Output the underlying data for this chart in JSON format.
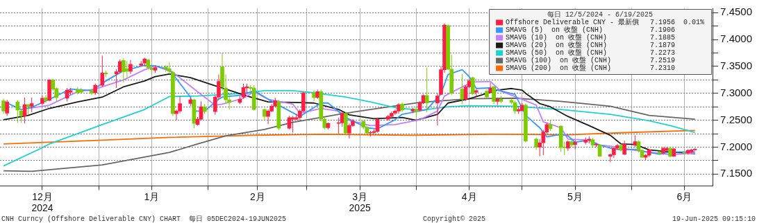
{
  "chart_data": {
    "type": "candlestick",
    "legend_title": "每日 12/5/2024 - 6/19/2025",
    "legend": "top right",
    "grid": true,
    "x": [
      "2024-12-05",
      "2024-12-06",
      "2024-12-09",
      "2024-12-10",
      "2024-12-11",
      "2024-12-12",
      "2024-12-13",
      "2024-12-16",
      "2024-12-17",
      "2024-12-18",
      "2024-12-19",
      "2024-12-20",
      "2024-12-23",
      "2024-12-24",
      "2024-12-26",
      "2024-12-27",
      "2024-12-30",
      "2024-12-31",
      "2025-01-02",
      "2025-01-03",
      "2025-01-06",
      "2025-01-07",
      "2025-01-08",
      "2025-01-09",
      "2025-01-10",
      "2025-01-13",
      "2025-01-14",
      "2025-01-15",
      "2025-01-16",
      "2025-01-17",
      "2025-01-20",
      "2025-01-21",
      "2025-01-22",
      "2025-01-23",
      "2025-01-24",
      "2025-01-27",
      "2025-01-28",
      "2025-01-29",
      "2025-01-30",
      "2025-01-31",
      "2025-02-03",
      "2025-02-04",
      "2025-02-05",
      "2025-02-06",
      "2025-02-07",
      "2025-02-10",
      "2025-02-11",
      "2025-02-12",
      "2025-02-13",
      "2025-02-14",
      "2025-02-17",
      "2025-02-18",
      "2025-02-19",
      "2025-02-20",
      "2025-02-21",
      "2025-02-24",
      "2025-02-25",
      "2025-02-26",
      "2025-02-27",
      "2025-02-28",
      "2025-03-03",
      "2025-03-04",
      "2025-03-05",
      "2025-03-06",
      "2025-03-07",
      "2025-03-10",
      "2025-03-11",
      "2025-03-12",
      "2025-03-13",
      "2025-03-14",
      "2025-03-17",
      "2025-03-18",
      "2025-03-19",
      "2025-03-20",
      "2025-03-21",
      "2025-03-24",
      "2025-03-25",
      "2025-03-26",
      "2025-03-27",
      "2025-03-28",
      "2025-03-31",
      "2025-04-01",
      "2025-04-02",
      "2025-04-03",
      "2025-04-04",
      "2025-04-07",
      "2025-04-08",
      "2025-04-09",
      "2025-04-10",
      "2025-04-11",
      "2025-04-14",
      "2025-04-15",
      "2025-04-16",
      "2025-04-17",
      "2025-04-18",
      "2025-04-21",
      "2025-04-22",
      "2025-04-23",
      "2025-04-24",
      "2025-04-25",
      "2025-04-28",
      "2025-04-29",
      "2025-04-30",
      "2025-05-01",
      "2025-05-02",
      "2025-05-05",
      "2025-05-06",
      "2025-05-07",
      "2025-05-08",
      "2025-05-09",
      "2025-05-12",
      "2025-05-13",
      "2025-05-14",
      "2025-05-15",
      "2025-05-16",
      "2025-05-19",
      "2025-05-20",
      "2025-05-21",
      "2025-05-22",
      "2025-05-23",
      "2025-05-26",
      "2025-05-27",
      "2025-05-28",
      "2025-05-29",
      "2025-05-30",
      "2025-06-02",
      "2025-06-03",
      "2025-06-04",
      "2025-06-05",
      "2025-06-06",
      "2025-06-09",
      "2025-06-10",
      "2025-06-11",
      "2025-06-12",
      "2025-06-13",
      "2025-06-16",
      "2025-06-17",
      "2025-06-18",
      "2025-06-19"
    ],
    "xlim": [
      "2024-12-04",
      "2025-06-24"
    ],
    "xticks": [
      {
        "value": "2024-12-16",
        "label": "12月\n2024"
      },
      {
        "value": "2025-01-01",
        "label": null
      },
      {
        "value": "2025-01-16",
        "label": "1月"
      },
      {
        "value": "2025-02-01",
        "label": null
      },
      {
        "value": "2025-02-15",
        "label": "2月"
      },
      {
        "value": "2025-03-01",
        "label": null
      },
      {
        "value": "2025-03-16",
        "label": "3月\n2025"
      },
      {
        "value": "2025-04-01",
        "label": null
      },
      {
        "value": "2025-04-16",
        "label": "4月"
      },
      {
        "value": "2025-05-01",
        "label": null
      },
      {
        "value": "2025-05-16",
        "label": "5月"
      },
      {
        "value": "2025-06-01",
        "label": null
      },
      {
        "value": "2025-06-16",
        "label": "6月"
      }
    ],
    "ylim": [
      7.128,
      7.458
    ],
    "yticks": [
      {
        "value": 7.15,
        "label": "7.1500"
      },
      {
        "value": 7.175,
        "label": null
      },
      {
        "value": 7.2,
        "label": "7.2000"
      },
      {
        "value": 7.225,
        "label": null
      },
      {
        "value": 7.25,
        "label": "7.2500"
      },
      {
        "value": 7.275,
        "label": null
      },
      {
        "value": 7.3,
        "label": "7.3000"
      },
      {
        "value": 7.325,
        "label": null
      },
      {
        "value": 7.35,
        "label": "7.3500"
      },
      {
        "value": 7.375,
        "label": null
      },
      {
        "value": 7.4,
        "label": "7.4000"
      },
      {
        "value": 7.425,
        "label": null
      },
      {
        "value": 7.45,
        "label": "7.4500"
      }
    ],
    "series": [
      {
        "name": "Offshore Deliverable CNY - 最新價",
        "color": "#ff1e46",
        "ohlc": [
          [
            7.286,
            7.29,
            7.262,
            7.267
          ],
          [
            7.263,
            7.288,
            7.258,
            7.284
          ],
          [
            7.284,
            7.287,
            7.245,
            7.269
          ],
          [
            7.267,
            7.27,
            7.245,
            7.258
          ],
          [
            7.258,
            7.292,
            7.244,
            7.279
          ],
          [
            7.279,
            7.28,
            7.26,
            7.275
          ],
          [
            7.276,
            7.292,
            7.265,
            7.281
          ],
          [
            7.281,
            7.296,
            7.278,
            7.291
          ],
          [
            7.292,
            7.297,
            7.282,
            7.287
          ],
          [
            7.287,
            7.326,
            7.285,
            7.325
          ],
          [
            7.325,
            7.327,
            7.305,
            7.308
          ],
          [
            7.309,
            7.311,
            7.285,
            7.292
          ],
          [
            7.291,
            7.31,
            7.285,
            7.306
          ],
          [
            7.302,
            7.31,
            7.297,
            7.305
          ],
          [
            7.307,
            7.312,
            7.298,
            7.301
          ],
          [
            7.306,
            7.31,
            7.299,
            7.302
          ],
          [
            7.305,
            7.308,
            7.297,
            7.3
          ],
          [
            7.301,
            7.318,
            7.297,
            7.315
          ],
          [
            7.315,
            7.37,
            7.312,
            7.338
          ],
          [
            7.338,
            7.342,
            7.33,
            7.336
          ],
          [
            7.336,
            7.345,
            7.31,
            7.34
          ],
          [
            7.34,
            7.363,
            7.338,
            7.359
          ],
          [
            7.361,
            7.365,
            7.32,
            7.34
          ],
          [
            7.346,
            7.36,
            7.33,
            7.341
          ],
          [
            7.341,
            7.362,
            7.336,
            7.354
          ],
          [
            7.352,
            7.36,
            7.35,
            7.355
          ],
          [
            7.356,
            7.366,
            7.35,
            7.364
          ],
          [
            7.362,
            7.364,
            7.344,
            7.348
          ],
          [
            7.347,
            7.352,
            7.336,
            7.344
          ],
          [
            7.343,
            7.352,
            7.338,
            7.348
          ],
          [
            7.349,
            7.352,
            7.34,
            7.346
          ],
          [
            7.346,
            7.358,
            7.336,
            7.341
          ],
          [
            7.339,
            7.342,
            7.258,
            7.262
          ],
          [
            7.262,
            7.27,
            7.25,
            7.267
          ],
          [
            7.267,
            7.295,
            7.263,
            7.281
          ],
          [
            7.281,
            7.292,
            7.276,
            7.288
          ],
          [
            7.288,
            7.29,
            7.235,
            7.244
          ],
          [
            7.242,
            7.256,
            7.24,
            7.252
          ],
          [
            7.252,
            7.285,
            7.25,
            7.275
          ],
          [
            7.275,
            7.28,
            7.262,
            7.266
          ],
          [
            7.266,
            7.296,
            7.26,
            7.293
          ],
          [
            7.293,
            7.335,
            7.29,
            7.322
          ],
          [
            7.349,
            7.375,
            7.305,
            7.312
          ],
          [
            7.31,
            7.335,
            7.28,
            7.288
          ],
          [
            7.288,
            7.3,
            7.27,
            7.283
          ],
          [
            7.283,
            7.295,
            7.28,
            7.289
          ],
          [
            7.293,
            7.318,
            7.29,
            7.311
          ],
          [
            7.31,
            7.318,
            7.3,
            7.312
          ],
          [
            7.311,
            7.315,
            7.305,
            7.309
          ],
          [
            7.31,
            7.315,
            7.268,
            7.27
          ],
          [
            7.27,
            7.272,
            7.25,
            7.257
          ],
          [
            7.257,
            7.27,
            7.243,
            7.267
          ],
          [
            7.267,
            7.28,
            7.265,
            7.276
          ],
          [
            7.276,
            7.292,
            7.276,
            7.286
          ],
          [
            7.284,
            7.288,
            7.232,
            7.235
          ],
          [
            7.235,
            7.258,
            7.233,
            7.255
          ],
          [
            7.252,
            7.258,
            7.227,
            7.255
          ],
          [
            7.252,
            7.262,
            7.25,
            7.255
          ],
          [
            7.255,
            7.27,
            7.25,
            7.267
          ],
          [
            7.267,
            7.303,
            7.265,
            7.301
          ],
          [
            7.301,
            7.305,
            7.285,
            7.292
          ],
          [
            7.292,
            7.307,
            7.29,
            7.303
          ],
          [
            7.303,
            7.307,
            7.248,
            7.252
          ],
          [
            7.252,
            7.255,
            7.233,
            7.236
          ],
          [
            7.236,
            7.246,
            7.233,
            7.244
          ],
          [
            7.244,
            7.255,
            7.225,
            7.245
          ],
          [
            7.245,
            7.265,
            7.238,
            7.263
          ],
          [
            7.263,
            7.265,
            7.224,
            7.226
          ],
          [
            7.226,
            7.244,
            7.216,
            7.24
          ],
          [
            7.24,
            7.252,
            7.238,
            7.248
          ],
          [
            7.248,
            7.25,
            7.233,
            7.237
          ],
          [
            7.237,
            7.24,
            7.224,
            7.226
          ],
          [
            7.226,
            7.23,
            7.22,
            7.227
          ],
          [
            7.227,
            7.233,
            7.225,
            7.229
          ],
          [
            7.229,
            7.255,
            7.227,
            7.252
          ],
          [
            7.252,
            7.26,
            7.249,
            7.257
          ],
          [
            7.257,
            7.266,
            7.255,
            7.263
          ],
          [
            7.263,
            7.27,
            7.26,
            7.267
          ],
          [
            7.267,
            7.282,
            7.262,
            7.279
          ],
          [
            7.28,
            7.283,
            7.265,
            7.269
          ],
          [
            7.267,
            7.273,
            7.263,
            7.27
          ],
          [
            7.27,
            7.275,
            7.255,
            7.266
          ],
          [
            7.269,
            7.285,
            7.266,
            7.282
          ],
          [
            7.282,
            7.298,
            7.28,
            7.296
          ],
          [
            7.296,
            7.348,
            7.265,
            7.282
          ],
          [
            7.282,
            7.3,
            7.24,
            7.295
          ],
          [
            7.298,
            7.35,
            7.297,
            7.344
          ],
          [
            7.344,
            7.43,
            7.338,
            7.427
          ],
          [
            7.426,
            7.428,
            7.343,
            7.345
          ],
          [
            7.345,
            7.372,
            7.297,
            7.3
          ],
          [
            7.308,
            7.336,
            7.28,
            7.289
          ],
          [
            7.289,
            7.315,
            7.286,
            7.312
          ],
          [
            7.312,
            7.326,
            7.31,
            7.323
          ],
          [
            7.329,
            7.331,
            7.297,
            7.299
          ],
          [
            7.302,
            7.308,
            7.295,
            7.305
          ],
          [
            7.304,
            7.308,
            7.29,
            7.293
          ],
          [
            7.302,
            7.32,
            7.3,
            7.31
          ],
          [
            7.312,
            7.314,
            7.28,
            7.285
          ],
          [
            7.285,
            7.292,
            7.278,
            7.289
          ],
          [
            7.289,
            7.295,
            7.282,
            7.285
          ],
          [
            7.287,
            7.29,
            7.28,
            7.283
          ],
          [
            7.283,
            7.287,
            7.262,
            7.267
          ],
          [
            7.267,
            7.276,
            7.262,
            7.27
          ],
          [
            7.268,
            7.282,
            7.266,
            7.278
          ],
          [
            7.278,
            7.281,
            7.209,
            7.211
          ],
          [
            7.215,
            7.218,
            7.195,
            7.2
          ],
          [
            7.2,
            7.215,
            7.183,
            7.208
          ],
          [
            7.208,
            7.232,
            7.185,
            7.228
          ],
          [
            7.228,
            7.245,
            7.225,
            7.242
          ],
          [
            7.242,
            7.25,
            7.23,
            7.234
          ],
          [
            7.239,
            7.241,
            7.191,
            7.199
          ],
          [
            7.2,
            7.21,
            7.185,
            7.199
          ],
          [
            7.198,
            7.212,
            7.193,
            7.21
          ],
          [
            7.21,
            7.212,
            7.2,
            7.204
          ],
          [
            7.205,
            7.212,
            7.196,
            7.209
          ],
          [
            7.209,
            7.218,
            7.205,
            7.213
          ],
          [
            7.213,
            7.22,
            7.207,
            7.215
          ],
          [
            7.214,
            7.217,
            7.2,
            7.204
          ],
          [
            7.204,
            7.208,
            7.2,
            7.205
          ],
          [
            7.204,
            7.206,
            7.182,
            7.183
          ],
          [
            7.183,
            7.188,
            7.172,
            7.186
          ],
          [
            7.186,
            7.2,
            7.18,
            7.198
          ],
          [
            7.198,
            7.206,
            7.195,
            7.203
          ],
          [
            7.203,
            7.206,
            7.192,
            7.195
          ],
          [
            7.187,
            7.212,
            7.185,
            7.206
          ],
          [
            7.204,
            7.222,
            7.2,
            7.21
          ],
          [
            7.21,
            7.212,
            7.19,
            7.194
          ],
          [
            7.194,
            7.196,
            7.18,
            7.181
          ],
          [
            7.181,
            7.187,
            7.176,
            7.185
          ],
          [
            7.185,
            7.197,
            7.182,
            7.195
          ],
          [
            7.191,
            7.193,
            7.185,
            7.188
          ],
          [
            7.189,
            7.2,
            7.186,
            7.198
          ],
          [
            7.194,
            7.2,
            7.192,
            7.198
          ],
          [
            7.198,
            7.2,
            7.181,
            7.183
          ],
          [
            7.183,
            7.198,
            7.182,
            7.197
          ],
          [
            7.19,
            7.192,
            7.185,
            7.189
          ],
          [
            7.189,
            7.196,
            7.186,
            7.194
          ],
          [
            7.191,
            7.197,
            7.189,
            7.195
          ],
          [
            7.195,
            7.198,
            7.193,
            7.196
          ]
        ],
        "colors": [
          "#7ccd00",
          "#ff1e46",
          "#7ccd00",
          "#7ccd00",
          "#ff1e46",
          "#7ccd00",
          "#ff1e46",
          "#ff1e46",
          "#7ccd00",
          "#ff1e46",
          "#7ccd00",
          "#7ccd00",
          "#ff1e46",
          "#ff1e46",
          "#7ccd00",
          "#7ccd00",
          "#7ccd00",
          "#ff1e46",
          "#ff1e46",
          "#7ccd00",
          "#ff1e46",
          "#ff1e46",
          "#7ccd00",
          "#7ccd00",
          "#ff1e46",
          "#ff1e46",
          "#ff1e46",
          "#7ccd00",
          "#7ccd00",
          "#ff1e46",
          "#7ccd00",
          "#7ccd00",
          "#7ccd00",
          "#ff1e46",
          "#ff1e46",
          "#ff1e46",
          "#7ccd00",
          "#ff1e46",
          "#ff1e46",
          "#7ccd00",
          "#ff1e46",
          "#ff1e46",
          "#7ccd00",
          "#7ccd00",
          "#7ccd00",
          "#ff1e46",
          "#ff1e46",
          "#ff1e46",
          "#7ccd00",
          "#7ccd00",
          "#7ccd00",
          "#ff1e46",
          "#ff1e46",
          "#ff1e46",
          "#7ccd00",
          "#ff1e46",
          "#ff1e46",
          "#ff1e46",
          "#ff1e46",
          "#ff1e46",
          "#7ccd00",
          "#ff1e46",
          "#7ccd00",
          "#7ccd00",
          "#ff1e46",
          "#ff1e46",
          "#ff1e46",
          "#7ccd00",
          "#ff1e46",
          "#ff1e46",
          "#7ccd00",
          "#7ccd00",
          "#ff1e46",
          "#ff1e46",
          "#ff1e46",
          "#ff1e46",
          "#ff1e46",
          "#ff1e46",
          "#ff1e46",
          "#7ccd00",
          "#ff1e46",
          "#7ccd00",
          "#ff1e46",
          "#ff1e46",
          "#7ccd00",
          "#ff1e46",
          "#ff1e46",
          "#ff1e46",
          "#7ccd00",
          "#7ccd00",
          "#7ccd00",
          "#ff1e46",
          "#ff1e46",
          "#7ccd00",
          "#ff1e46",
          "#7ccd00",
          "#ff1e46",
          "#7ccd00",
          "#ff1e46",
          "#7ccd00",
          "#7ccd00",
          "#7ccd00",
          "#ff1e46",
          "#ff1e46",
          "#7ccd00",
          "#7ccd00",
          "#ff1e46",
          "#ff1e46",
          "#ff1e46",
          "#7ccd00",
          "#7ccd00",
          "#7ccd00",
          "#ff1e46",
          "#7ccd00",
          "#ff1e46",
          "#ff1e46",
          "#ff1e46",
          "#7ccd00",
          "#ff1e46",
          "#7ccd00",
          "#ff1e46",
          "#ff1e46",
          "#ff1e46",
          "#7ccd00",
          "#ff1e46",
          "#ff1e46",
          "#7ccd00",
          "#7ccd00",
          "#ff1e46",
          "#ff1e46",
          "#7ccd00",
          "#ff1e46",
          "#ff1e46",
          "#7ccd00",
          "#ff1e46",
          "#7ccd00",
          "#ff1e46",
          "#ff1e46",
          "#ff1e46"
        ]
      },
      {
        "type": "line",
        "name": "SMAVG (5)  on 收盤 (CNH)",
        "color": "#3399ff",
        "x": [
          "2024-12-06",
          "2024-12-10",
          "2024-12-13",
          "2024-12-18",
          "2024-12-24",
          "2024-12-30",
          "2025-01-03",
          "2025-01-08",
          "2025-01-14",
          "2025-01-17",
          "2025-01-21",
          "2025-01-27",
          "2025-01-28",
          "2025-01-31",
          "2025-02-04",
          "2025-02-05",
          "2025-02-11",
          "2025-02-14",
          "2025-02-18",
          "2025-02-21",
          "2025-02-27",
          "2025-03-05",
          "2025-03-07",
          "2025-03-12",
          "2025-03-18",
          "2025-03-21",
          "2025-03-26",
          "2025-03-28",
          "2025-04-04",
          "2025-04-08",
          "2025-04-10",
          "2025-04-14",
          "2025-04-16",
          "2025-04-18",
          "2025-04-22",
          "2025-04-24",
          "2025-04-29",
          "2025-05-02",
          "2025-05-06",
          "2025-05-08",
          "2025-05-12",
          "2025-05-14",
          "2025-05-16",
          "2025-05-20",
          "2025-05-22",
          "2025-05-26",
          "2025-05-29",
          "2025-06-02",
          "2025-06-05",
          "2025-06-09",
          "2025-06-12",
          "2025-06-19"
        ],
        "values": [
          7.282,
          7.27,
          7.274,
          7.289,
          7.308,
          7.305,
          7.323,
          7.342,
          7.352,
          7.351,
          7.344,
          7.293,
          7.267,
          7.267,
          7.289,
          7.293,
          7.297,
          7.305,
          7.289,
          7.278,
          7.257,
          7.282,
          7.282,
          7.255,
          7.236,
          7.234,
          7.251,
          7.261,
          7.27,
          7.299,
          7.335,
          7.344,
          7.331,
          7.309,
          7.31,
          7.306,
          7.298,
          7.259,
          7.236,
          7.219,
          7.224,
          7.221,
          7.209,
          7.213,
          7.206,
          7.198,
          7.195,
          7.196,
          7.191,
          7.187,
          7.191,
          7.191
        ]
      },
      {
        "type": "line",
        "name": "SMAVG (10)  on 收盤 (CNH)",
        "color": "#c77dff",
        "x": [
          "2024-12-12",
          "2024-12-18",
          "2024-12-26",
          "2024-12-31",
          "2025-01-08",
          "2025-01-14",
          "2025-01-17",
          "2025-01-22",
          "2025-01-29",
          "2025-02-03",
          "2025-02-05",
          "2025-02-11",
          "2025-02-14",
          "2025-02-18",
          "2025-02-25",
          "2025-02-27",
          "2025-03-05",
          "2025-03-10",
          "2025-03-13",
          "2025-03-19",
          "2025-03-26",
          "2025-04-02",
          "2025-04-07",
          "2025-04-09",
          "2025-04-14",
          "2025-04-17",
          "2025-04-22",
          "2025-04-25",
          "2025-05-01",
          "2025-05-05",
          "2025-05-07",
          "2025-05-12",
          "2025-05-14",
          "2025-05-20",
          "2025-05-23",
          "2025-05-28",
          "2025-06-02",
          "2025-06-06",
          "2025-06-12",
          "2025-06-19"
        ],
        "values": [
          7.272,
          7.278,
          7.303,
          7.308,
          7.325,
          7.344,
          7.351,
          7.339,
          7.303,
          7.278,
          7.28,
          7.291,
          7.303,
          7.289,
          7.28,
          7.263,
          7.272,
          7.267,
          7.25,
          7.24,
          7.242,
          7.251,
          7.267,
          7.295,
          7.312,
          7.321,
          7.322,
          7.304,
          7.289,
          7.278,
          7.247,
          7.236,
          7.215,
          7.213,
          7.204,
          7.2,
          7.194,
          7.191,
          7.186,
          7.189
        ]
      },
      {
        "type": "line",
        "name": "SMAVG (20)  on 收盤 (CNH)",
        "color": "#1a1a1a",
        "x": [
          "2024-12-05",
          "2024-12-12",
          "2024-12-18",
          "2024-12-26",
          "2025-01-02",
          "2025-01-08",
          "2025-01-14",
          "2025-01-17",
          "2025-01-21",
          "2025-01-27",
          "2025-02-03",
          "2025-02-06",
          "2025-02-12",
          "2025-02-18",
          "2025-02-25",
          "2025-03-03",
          "2025-03-10",
          "2025-03-13",
          "2025-03-20",
          "2025-03-28",
          "2025-04-01",
          "2025-04-07",
          "2025-04-10",
          "2025-04-16",
          "2025-04-24",
          "2025-04-28",
          "2025-05-01",
          "2025-05-02",
          "2025-05-06",
          "2025-05-09",
          "2025-05-14",
          "2025-05-20",
          "2025-05-26",
          "2025-05-29",
          "2025-06-02",
          "2025-06-06",
          "2025-06-12",
          "2025-06-19"
        ],
        "values": [
          7.251,
          7.259,
          7.272,
          7.284,
          7.293,
          7.312,
          7.323,
          7.331,
          7.336,
          7.329,
          7.314,
          7.308,
          7.295,
          7.284,
          7.283,
          7.282,
          7.27,
          7.26,
          7.253,
          7.255,
          7.25,
          7.261,
          7.282,
          7.29,
          7.306,
          7.309,
          7.306,
          7.3,
          7.281,
          7.275,
          7.257,
          7.24,
          7.222,
          7.206,
          7.205,
          7.195,
          7.191,
          7.188
        ]
      },
      {
        "type": "line",
        "name": "SMAVG (50)  on 收盤 (CNH)",
        "color": "#1ed2d2",
        "x": [
          "2024-12-05",
          "2024-12-16",
          "2024-12-18",
          "2025-01-02",
          "2025-01-14",
          "2025-01-21",
          "2025-01-29",
          "2025-02-11",
          "2025-02-17",
          "2025-02-25",
          "2025-03-03",
          "2025-03-12",
          "2025-03-19",
          "2025-03-27",
          "2025-04-03",
          "2025-04-10",
          "2025-04-16",
          "2025-04-29",
          "2025-05-12",
          "2025-05-26",
          "2025-06-06",
          "2025-06-12",
          "2025-06-19"
        ],
        "values": [
          7.165,
          7.199,
          7.206,
          7.242,
          7.27,
          7.294,
          7.295,
          7.3,
          7.305,
          7.305,
          7.301,
          7.293,
          7.284,
          7.272,
          7.269,
          7.275,
          7.277,
          7.276,
          7.27,
          7.261,
          7.249,
          7.24,
          7.227
        ]
      },
      {
        "type": "line",
        "name": "SMAVG (100)  on 收盤 (CNH)",
        "color": "#666666",
        "x": [
          "2024-12-05",
          "2024-12-13",
          "2025-01-02",
          "2025-01-21",
          "2025-01-29",
          "2025-02-06",
          "2025-02-17",
          "2025-02-25",
          "2025-03-10",
          "2025-03-21",
          "2025-04-02",
          "2025-04-16",
          "2025-04-29",
          "2025-05-12",
          "2025-05-26",
          "2025-06-06",
          "2025-06-19"
        ],
        "values": [
          7.156,
          7.155,
          7.167,
          7.19,
          7.206,
          7.221,
          7.233,
          7.246,
          7.261,
          7.272,
          7.283,
          7.29,
          7.291,
          7.285,
          7.276,
          7.259,
          7.252
        ]
      },
      {
        "type": "line",
        "name": "SMAVG (200)  on 收盤 (CNH)",
        "color": "#ff6a00",
        "x": [
          "2024-12-05",
          "2025-01-02",
          "2025-01-21",
          "2025-02-14",
          "2025-03-05",
          "2025-03-31",
          "2025-04-22",
          "2025-05-14",
          "2025-05-30",
          "2025-06-19"
        ],
        "values": [
          7.206,
          7.213,
          7.218,
          7.222,
          7.224,
          7.222,
          7.224,
          7.223,
          7.227,
          7.231
        ]
      }
    ],
    "annotations": [
      "CNH Curncy (Offshore Deliverable CNY) CHART  每日 05DEC2024-19JUN2025",
      "Copyright© 2025",
      "19-Jun-2025 09:15:10",
      "7.1956",
      "7.1906",
      "7.1885",
      "7.1879",
      "7.2273",
      "7.2519",
      "7.2310",
      "0.01%"
    ]
  }
}
